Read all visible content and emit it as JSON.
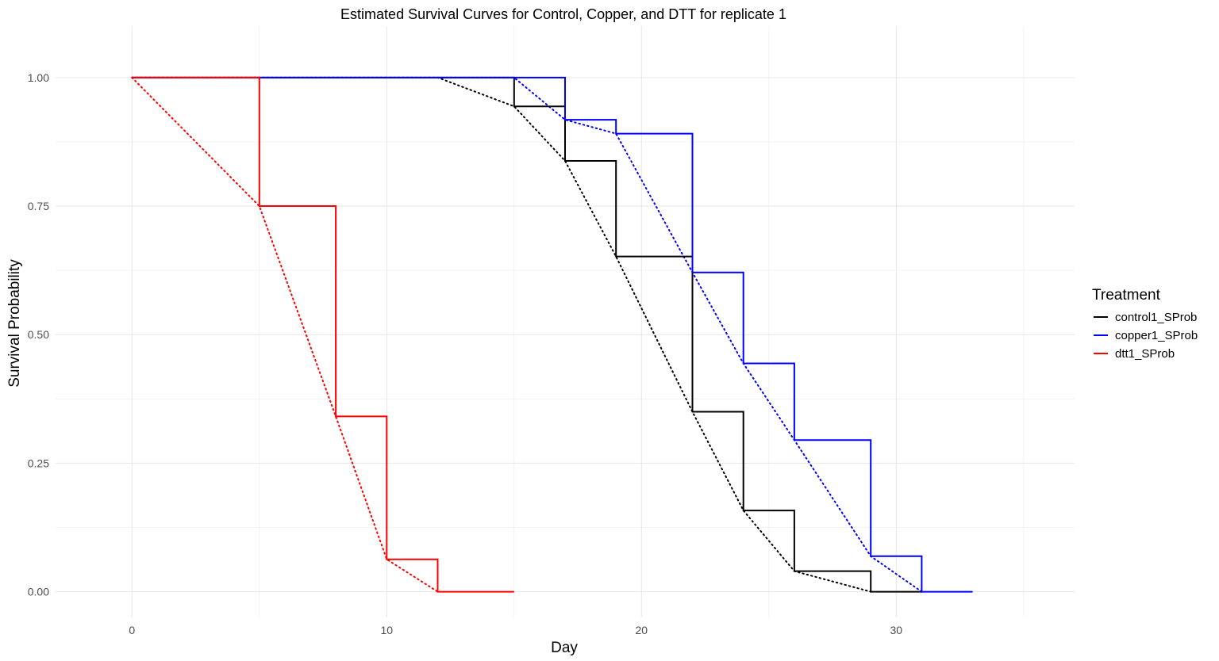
{
  "chart_data": {
    "type": "line",
    "title": "Estimated Survival Curves for Control, Copper, and DTT for replicate 1",
    "xlabel": "Day",
    "ylabel": "Survival Probability",
    "xlim": [
      -3,
      37
    ],
    "ylim": [
      -0.05,
      1.1
    ],
    "x_ticks": [
      0,
      10,
      20,
      30
    ],
    "x_tick_labels": [
      "0",
      "10",
      "20",
      "30"
    ],
    "y_ticks": [
      0,
      0.25,
      0.5,
      0.75,
      1
    ],
    "y_tick_labels": [
      "0.00",
      "0.25",
      "0.50",
      "0.75",
      "1.00"
    ],
    "grid": true,
    "legend": {
      "title": "Treatment",
      "position": "right"
    },
    "series": [
      {
        "name": "control1_SProb",
        "color": "#000000",
        "style": "step",
        "x": [
          0,
          15,
          17,
          19,
          22,
          24,
          26,
          29,
          31
        ],
        "y": [
          1.0,
          0.944,
          0.838,
          0.652,
          0.35,
          0.158,
          0.04,
          0.0,
          0.0
        ]
      },
      {
        "name": "copper1_SProb",
        "color": "#0000ff",
        "style": "step",
        "x": [
          0,
          17,
          19,
          22,
          24,
          26,
          29,
          31,
          33
        ],
        "y": [
          1.0,
          0.918,
          0.891,
          0.621,
          0.444,
          0.295,
          0.069,
          0.0,
          0.0
        ]
      },
      {
        "name": "dtt1_SProb",
        "color": "#ff0000",
        "style": "step",
        "x": [
          0,
          5,
          8,
          10,
          12,
          15
        ],
        "y": [
          1.0,
          0.75,
          0.341,
          0.063,
          0.0,
          0.0
        ]
      }
    ],
    "dotted_lines": [
      {
        "color": "#000000",
        "x": [
          0,
          12,
          15,
          17,
          19,
          22,
          24,
          26,
          29
        ],
        "y": [
          1.0,
          1.0,
          0.944,
          0.838,
          0.652,
          0.35,
          0.158,
          0.04,
          0.0
        ]
      },
      {
        "color": "#0000ff",
        "x": [
          0,
          15,
          17,
          19,
          22,
          24,
          26,
          29,
          31
        ],
        "y": [
          1.0,
          1.0,
          0.918,
          0.891,
          0.621,
          0.444,
          0.295,
          0.069,
          0.0
        ]
      },
      {
        "color": "#ff0000",
        "x": [
          0,
          5,
          8,
          10,
          12
        ],
        "y": [
          1.0,
          0.75,
          0.341,
          0.063,
          0.0
        ]
      }
    ]
  }
}
